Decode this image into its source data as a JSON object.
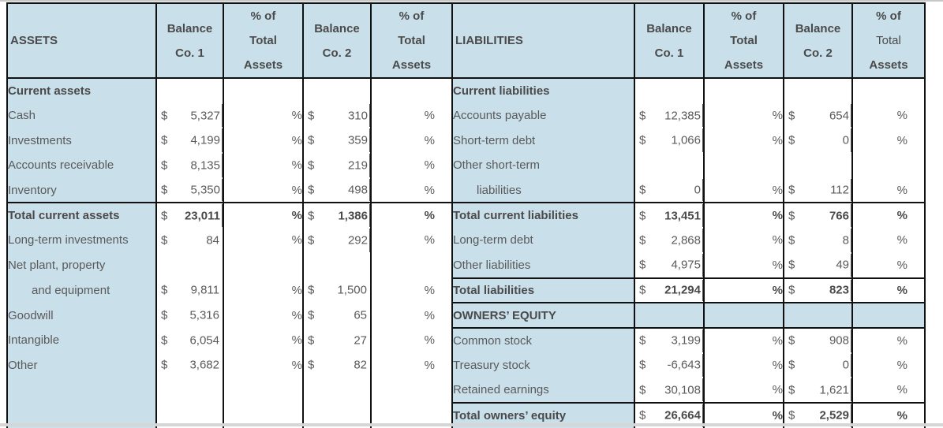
{
  "header": {
    "assets_label": "ASSETS",
    "liabilities_label": "LIABILITIES",
    "balance_co1": [
      "Balance",
      "Co. 1"
    ],
    "pct_total": [
      "% of",
      "Total",
      "Assets"
    ],
    "balance_co2": [
      "Balance",
      "Co. 2"
    ]
  },
  "pct_symbol": "%",
  "currency_symbol": "$",
  "assets": [
    {
      "label": "Current assets",
      "bold": true,
      "co1": "",
      "co2": "",
      "pct": false
    },
    {
      "label": "Cash",
      "co1": "5,327",
      "co2": "310",
      "pct": true
    },
    {
      "label": "Investments",
      "co1": "4,199",
      "co2": "359",
      "pct": true
    },
    {
      "label": "Accounts receivable",
      "co1": "8,135",
      "co2": "219",
      "pct": true
    },
    {
      "label": "Inventory",
      "co1": "5,350",
      "co2": "498",
      "pct": true
    },
    {
      "label": "Total current assets",
      "bold": true,
      "co1": "23,011",
      "co2": "1,386",
      "pct": true
    },
    {
      "label": "Long-term investments",
      "co1": "84",
      "co2": "292",
      "pct": true
    },
    {
      "label": "Net plant, property",
      "co1": "",
      "co2": "",
      "pct": false
    },
    {
      "label": "and equipment",
      "indent": true,
      "co1": "9,811",
      "co2": "1,500",
      "pct": true
    },
    {
      "label": "Goodwill",
      "co1": "5,316",
      "co2": "65",
      "pct": true
    },
    {
      "label": "Intangible",
      "co1": "6,054",
      "co2": "27",
      "pct": true
    },
    {
      "label": "Other",
      "co1": "3,682",
      "co2": "82",
      "pct": true
    },
    {
      "label": "",
      "co1": "",
      "co2": "",
      "pct": false
    },
    {
      "label": "",
      "co1": "",
      "co2": "",
      "pct": false
    }
  ],
  "liabilities": [
    {
      "label": "Current liabilities",
      "bold": true,
      "co1": "",
      "co2": "",
      "pct": false
    },
    {
      "label": "Accounts payable",
      "co1": "12,385",
      "co2": "654",
      "pct": true
    },
    {
      "label": "Short-term debt",
      "co1": "1,066",
      "co2": "0",
      "pct": true
    },
    {
      "label": "Other short-term",
      "co1": "",
      "co2": "",
      "pct": false
    },
    {
      "label": "liabilities",
      "indent": true,
      "co1": "0",
      "co2": "112",
      "pct": true
    },
    {
      "label": "Total current liabilities",
      "bold": true,
      "co1": "13,451",
      "co2": "766",
      "pct": true
    },
    {
      "label": "Long-term debt",
      "co1": "2,868",
      "co2": "8",
      "pct": true
    },
    {
      "label": "Other liabilities",
      "co1": "4,975",
      "co2": "49",
      "pct": true
    },
    {
      "label": "Total liabilities",
      "bold": true,
      "co1": "21,294",
      "co2": "823",
      "pct": true
    },
    {
      "label": "OWNERS’ EQUITY",
      "bold": true,
      "co1": "",
      "co2": "",
      "pct": false
    },
    {
      "label": "Common stock",
      "co1": "3,199",
      "co2": "908",
      "pct": true
    },
    {
      "label": "Treasury stock",
      "co1": "-6,643",
      "co2": "0",
      "pct": true
    },
    {
      "label": "Retained earnings",
      "co1": "30,108",
      "co2": "1,621",
      "pct": true
    },
    {
      "label": "Total owners’ equity",
      "bold": true,
      "co1": "26,664",
      "co2": "2,529",
      "pct": true
    }
  ]
}
